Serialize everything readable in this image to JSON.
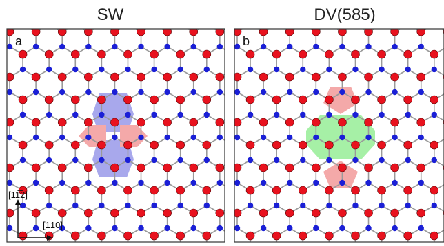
{
  "panels": [
    {
      "title": "SW",
      "letter": "a",
      "regions": [
        {
          "kind": "heptagon",
          "color": "#a8a8ec"
        },
        {
          "kind": "heptagon",
          "color": "#a8a8ec"
        },
        {
          "kind": "pentagon",
          "color": "#f4a9a9"
        },
        {
          "kind": "pentagon",
          "color": "#f4a9a9"
        }
      ]
    },
    {
      "title": "DV(585)",
      "letter": "b",
      "regions": [
        {
          "kind": "pentagon",
          "color": "#f4a9a9"
        },
        {
          "kind": "octagon",
          "color": "#a6f0a6"
        },
        {
          "kind": "pentagon",
          "color": "#f4a9a9"
        }
      ]
    }
  ],
  "axes": {
    "vertical_label": "[11̅2]",
    "horizontal_label": "[1̅10]"
  },
  "colors": {
    "atom_a": "#e8121e",
    "atom_b": "#1a1fd6",
    "bond": "#9a9a9a"
  }
}
